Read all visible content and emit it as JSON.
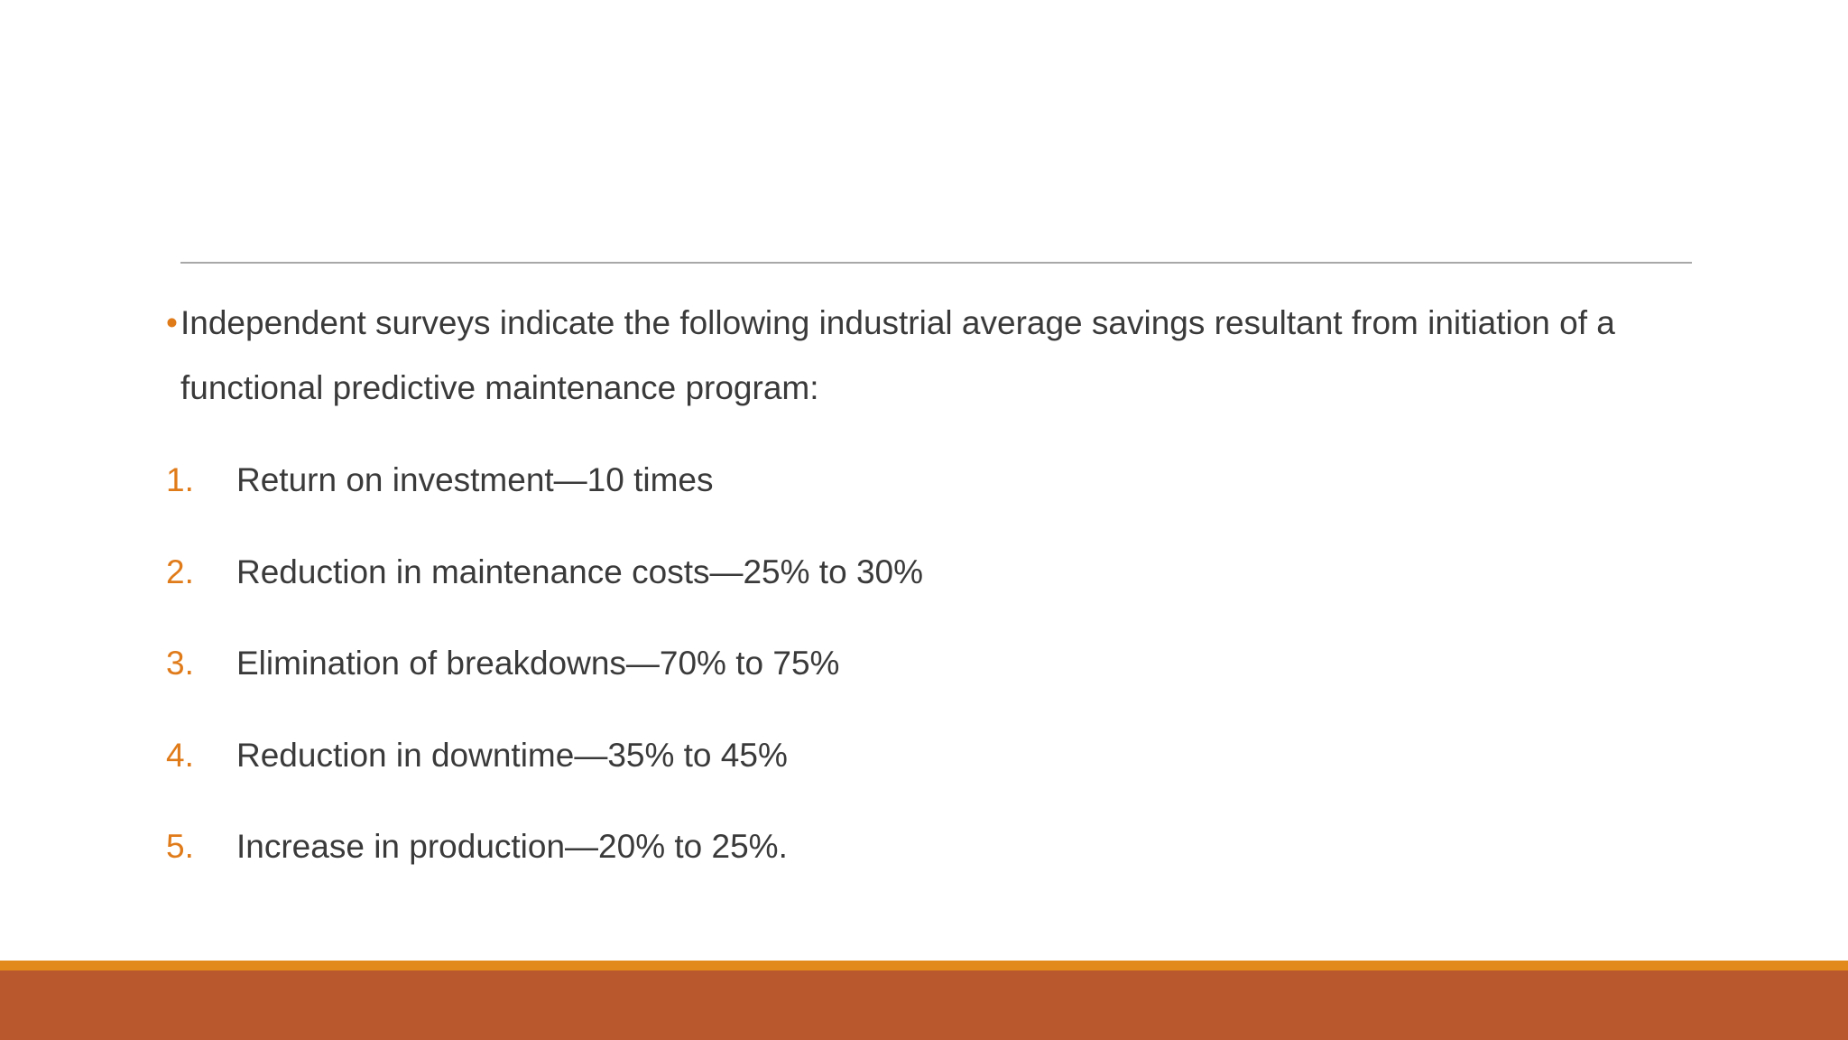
{
  "slide": {
    "intro": {
      "bullet": "•",
      "text": "Independent surveys indicate the following industrial average savings resultant from initiation of a functional predictive maintenance program:"
    },
    "items": [
      {
        "number": "1.",
        "text": "Return on investment—10 times"
      },
      {
        "number": "2.",
        "text": "Reduction in maintenance costs—25% to 30%"
      },
      {
        "number": "3.",
        "text": "Elimination of breakdowns—70% to 75%"
      },
      {
        "number": "4.",
        "text": "Reduction in downtime—35% to 45%"
      },
      {
        "number": "5.",
        "text": "Increase in production—20% to 25%."
      }
    ]
  },
  "colors": {
    "accent": "#e07b1a",
    "footer_stripe": "#e38a1c",
    "footer_band": "#b9582c",
    "text": "#3a3a3a",
    "rule": "#a8a8a8"
  }
}
